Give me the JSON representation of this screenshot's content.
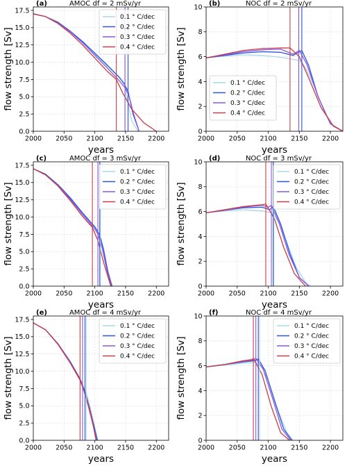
{
  "colors": [
    "#a6d8ec",
    "#2f55d4",
    "#8a56e2",
    "#c73c46"
  ],
  "series_names": [
    "0.1 ° C/dec",
    "0.2 ° C/dec",
    "0.3 ° C/dec",
    "0.4 ° C/dec"
  ],
  "chart_data": [
    {
      "letter": "(a)",
      "title": "AMOC df = 2 mSv/yr",
      "type": "line",
      "xlabel": "years",
      "ylabel": "flow strength [Sv]",
      "xlim": [
        2000,
        2220
      ],
      "ylim": [
        0,
        18
      ],
      "xticks": [
        2000,
        2050,
        2100,
        2150,
        2200
      ],
      "yticks": [
        0.0,
        2.5,
        5.0,
        7.5,
        10.0,
        12.5,
        15.0,
        17.5
      ],
      "ytick_labels": [
        "0.0",
        "2.5",
        "5.0",
        "7.5",
        "10.0",
        "12.5",
        "15.0",
        "17.5"
      ],
      "grid": true,
      "legend": "top-right",
      "vlines": [
        154,
        154,
        149,
        135
      ],
      "series": [
        {
          "name": "0.1 ° C/dec",
          "x": [
            2000,
            2020,
            2040,
            2060,
            2080,
            2100,
            2120,
            2140,
            2148,
            2154,
            2160,
            2170
          ],
          "y": [
            17.0,
            16.6,
            15.7,
            14.4,
            12.9,
            11.2,
            9.5,
            7.7,
            7.0,
            4.0,
            1.5,
            0.0
          ]
        },
        {
          "name": "0.2 ° C/dec",
          "x": [
            2000,
            2020,
            2040,
            2060,
            2080,
            2100,
            2120,
            2140,
            2148,
            2154,
            2162,
            2172
          ],
          "y": [
            17.0,
            16.6,
            15.8,
            14.5,
            13.0,
            11.3,
            9.6,
            7.8,
            6.8,
            5.8,
            2.5,
            0.0
          ]
        },
        {
          "name": "0.3 ° C/dec",
          "x": [
            2000,
            2020,
            2040,
            2060,
            2080,
            2100,
            2120,
            2140,
            2149,
            2155,
            2163,
            2172
          ],
          "y": [
            17.0,
            16.6,
            15.7,
            14.4,
            12.8,
            11.0,
            9.2,
            7.3,
            6.3,
            5.3,
            2.5,
            0.0
          ]
        },
        {
          "name": "0.4 ° C/dec",
          "x": [
            2000,
            2020,
            2040,
            2060,
            2080,
            2100,
            2120,
            2135,
            2145,
            2160,
            2180,
            2200
          ],
          "y": [
            17.0,
            16.6,
            15.6,
            14.2,
            12.5,
            10.6,
            8.7,
            7.5,
            5.6,
            3.2,
            1.2,
            0.0
          ]
        }
      ]
    },
    {
      "letter": "(b)",
      "title": "NOC df = 2 mSv/yr",
      "type": "line",
      "xlabel": "years",
      "ylabel": "flow strength [Sv]",
      "xlim": [
        2000,
        2220
      ],
      "ylim": [
        0,
        10
      ],
      "xticks": [
        2000,
        2050,
        2100,
        2150,
        2200
      ],
      "yticks": [
        0,
        2,
        4,
        6,
        8,
        10
      ],
      "ytick_labels": [
        "0",
        "2",
        "4",
        "6",
        "8",
        "10"
      ],
      "grid": true,
      "legend": "lower-left",
      "vlines": [
        154,
        154,
        149,
        135
      ],
      "series": [
        {
          "name": "0.1 ° C/dec",
          "x": [
            2000,
            2030,
            2060,
            2090,
            2120,
            2150,
            2160,
            2175,
            2190,
            2205,
            2220
          ],
          "y": [
            5.9,
            6.05,
            6.15,
            6.1,
            5.95,
            5.7,
            5.1,
            3.5,
            1.6,
            0.4,
            0.0
          ]
        },
        {
          "name": "0.2 ° C/dec",
          "x": [
            2000,
            2030,
            2060,
            2090,
            2120,
            2140,
            2154,
            2165,
            2180,
            2200,
            2220
          ],
          "y": [
            5.9,
            6.1,
            6.3,
            6.4,
            6.35,
            6.1,
            6.5,
            5.3,
            2.8,
            0.6,
            0.0
          ]
        },
        {
          "name": "0.3 ° C/dec",
          "x": [
            2000,
            2030,
            2060,
            2090,
            2120,
            2140,
            2150,
            2162,
            2180,
            2200,
            2220
          ],
          "y": [
            5.9,
            6.15,
            6.4,
            6.55,
            6.6,
            6.2,
            6.5,
            5.4,
            2.8,
            0.6,
            0.0
          ]
        },
        {
          "name": "0.4 ° C/dec",
          "x": [
            2000,
            2030,
            2060,
            2090,
            2120,
            2135,
            2150,
            2165,
            2185,
            2205,
            2220
          ],
          "y": [
            5.9,
            6.2,
            6.5,
            6.65,
            6.7,
            6.7,
            6.0,
            4.3,
            1.9,
            0.4,
            0.0
          ]
        }
      ]
    },
    {
      "letter": "(c)",
      "title": "AMOC df = 3 mSv/yr",
      "type": "line",
      "xlabel": "years",
      "ylabel": "flow strength [Sv]",
      "xlim": [
        2000,
        2220
      ],
      "ylim": [
        0,
        18
      ],
      "xticks": [
        2000,
        2050,
        2100,
        2150,
        2200
      ],
      "yticks": [
        0.0,
        2.5,
        5.0,
        7.5,
        10.0,
        12.5,
        15.0,
        17.5
      ],
      "ytick_labels": [
        "0.0",
        "2.5",
        "5.0",
        "7.5",
        "10.0",
        "12.5",
        "15.0",
        "17.5"
      ],
      "grid": true,
      "legend": "top-right",
      "vlines": [
        109,
        108,
        105,
        96
      ],
      "series": [
        {
          "name": "0.1 ° C/dec",
          "x": [
            2000,
            2020,
            2040,
            2060,
            2080,
            2100,
            2106,
            2112,
            2120,
            2128
          ],
          "y": [
            17.0,
            16.2,
            14.7,
            12.8,
            10.6,
            8.5,
            7.7,
            5.6,
            2.2,
            0.0
          ]
        },
        {
          "name": "0.2 ° C/dec",
          "x": [
            2000,
            2020,
            2040,
            2060,
            2080,
            2100,
            2108,
            2114,
            2121,
            2128
          ],
          "y": [
            17.0,
            16.2,
            14.7,
            12.8,
            10.6,
            8.6,
            7.4,
            5.4,
            2.2,
            0.0
          ]
        },
        {
          "name": "0.3 ° C/dec",
          "x": [
            2000,
            2020,
            2040,
            2060,
            2080,
            2100,
            2105,
            2112,
            2120,
            2127
          ],
          "y": [
            17.0,
            16.1,
            14.6,
            12.6,
            10.4,
            8.3,
            7.5,
            5.5,
            2.2,
            0.0
          ]
        },
        {
          "name": "0.4 ° C/dec",
          "x": [
            2000,
            2020,
            2040,
            2060,
            2080,
            2096,
            2105,
            2115,
            2126
          ],
          "y": [
            17.0,
            16.1,
            14.5,
            12.4,
            10.1,
            8.5,
            6.6,
            3.2,
            0.0
          ]
        }
      ]
    },
    {
      "letter": "(d)",
      "title": "NOC df = 3 mSv/yr",
      "type": "line",
      "xlabel": "years",
      "ylabel": "flow strength [Sv]",
      "xlim": [
        2000,
        2220
      ],
      "ylim": [
        0,
        10
      ],
      "xticks": [
        2000,
        2050,
        2100,
        2150,
        2200
      ],
      "yticks": [
        0,
        2,
        4,
        6,
        8,
        10
      ],
      "ytick_labels": [
        "0",
        "2",
        "4",
        "6",
        "8",
        "10"
      ],
      "grid": true,
      "legend": "top-right",
      "vlines": [
        109,
        108,
        105,
        96
      ],
      "series": [
        {
          "name": "0.1 ° C/dec",
          "x": [
            2000,
            2030,
            2060,
            2090,
            2105,
            2115,
            2130,
            2145,
            2160,
            2168
          ],
          "y": [
            5.9,
            6.05,
            6.15,
            6.05,
            5.9,
            5.3,
            3.5,
            1.5,
            0.3,
            0.0
          ]
        },
        {
          "name": "0.2 ° C/dec",
          "x": [
            2000,
            2030,
            2060,
            2090,
            2102,
            2108,
            2120,
            2135,
            2150,
            2165
          ],
          "y": [
            5.9,
            6.1,
            6.3,
            6.35,
            6.15,
            6.4,
            5.0,
            2.6,
            0.7,
            0.0
          ]
        },
        {
          "name": "0.3 ° C/dec",
          "x": [
            2000,
            2030,
            2060,
            2090,
            2100,
            2105,
            2118,
            2133,
            2150,
            2165
          ],
          "y": [
            5.9,
            6.1,
            6.35,
            6.5,
            6.35,
            6.5,
            5.0,
            2.6,
            0.7,
            0.0
          ]
        },
        {
          "name": "0.4 ° C/dec",
          "x": [
            2000,
            2030,
            2060,
            2090,
            2096,
            2110,
            2125,
            2142,
            2160
          ],
          "y": [
            5.9,
            6.15,
            6.4,
            6.55,
            6.6,
            5.4,
            3.1,
            1.0,
            0.0
          ]
        }
      ]
    },
    {
      "letter": "(e)",
      "title": "AMOC df = 4 mSv/yr",
      "type": "line",
      "xlabel": "years",
      "ylabel": "flow strength [Sv]",
      "xlim": [
        2000,
        2220
      ],
      "ylim": [
        0,
        18
      ],
      "xticks": [
        2000,
        2050,
        2100,
        2150,
        2200
      ],
      "yticks": [
        0.0,
        2.5,
        5.0,
        7.5,
        10.0,
        12.5,
        15.0,
        17.5
      ],
      "ytick_labels": [
        "0.0",
        "2.5",
        "5.0",
        "7.5",
        "10.0",
        "12.5",
        "15.0",
        "17.5"
      ],
      "grid": true,
      "legend": "top-right",
      "vlines": [
        86,
        84,
        80,
        76
      ],
      "series": [
        {
          "name": "0.1 ° C/dec",
          "x": [
            2000,
            2020,
            2040,
            2060,
            2076,
            2086,
            2093,
            2099,
            2105
          ],
          "y": [
            17.0,
            16.0,
            14.0,
            11.4,
            8.9,
            6.9,
            4.6,
            2.2,
            0.0
          ]
        },
        {
          "name": "0.2 ° C/dec",
          "x": [
            2000,
            2020,
            2040,
            2060,
            2076,
            2084,
            2091,
            2098,
            2104
          ],
          "y": [
            17.0,
            16.0,
            14.0,
            11.4,
            8.9,
            7.0,
            4.8,
            2.3,
            0.0
          ]
        },
        {
          "name": "0.3 ° C/dec",
          "x": [
            2000,
            2020,
            2040,
            2060,
            2076,
            2080,
            2088,
            2096,
            2103
          ],
          "y": [
            17.0,
            16.0,
            14.0,
            11.3,
            8.8,
            7.9,
            5.4,
            2.6,
            0.0
          ]
        },
        {
          "name": "0.4 ° C/dec",
          "x": [
            2000,
            2020,
            2040,
            2060,
            2076,
            2086,
            2095,
            2102
          ],
          "y": [
            17.0,
            16.0,
            13.9,
            11.2,
            8.7,
            6.3,
            3.3,
            0.0
          ]
        }
      ]
    },
    {
      "letter": "(f)",
      "title": "NOC df = 4 mSv/yr",
      "type": "line",
      "xlabel": "years",
      "ylabel": "flow strength [Sv]",
      "xlim": [
        2000,
        2220
      ],
      "ylim": [
        0,
        10
      ],
      "xticks": [
        2000,
        2050,
        2100,
        2150,
        2200
      ],
      "yticks": [
        0,
        2,
        4,
        6,
        8,
        10
      ],
      "ytick_labels": [
        "0",
        "2",
        "4",
        "6",
        "8",
        "10"
      ],
      "grid": true,
      "legend": "top-right",
      "vlines": [
        86,
        84,
        80,
        76
      ],
      "series": [
        {
          "name": "0.1 ° C/dec",
          "x": [
            2000,
            2030,
            2060,
            2080,
            2090,
            2100,
            2115,
            2130,
            2140
          ],
          "y": [
            5.9,
            6.05,
            6.2,
            6.25,
            5.9,
            4.8,
            2.5,
            0.6,
            0.0
          ]
        },
        {
          "name": "0.2 ° C/dec",
          "x": [
            2000,
            2030,
            2060,
            2078,
            2084,
            2095,
            2110,
            2125,
            2138
          ],
          "y": [
            5.9,
            6.1,
            6.3,
            6.4,
            6.55,
            5.6,
            3.2,
            0.9,
            0.0
          ]
        },
        {
          "name": "0.3 ° C/dec",
          "x": [
            2000,
            2030,
            2060,
            2076,
            2080,
            2092,
            2108,
            2122,
            2136
          ],
          "y": [
            5.9,
            6.1,
            6.35,
            6.45,
            6.6,
            5.7,
            3.2,
            0.9,
            0.0
          ]
        },
        {
          "name": "0.4 ° C/dec",
          "x": [
            2000,
            2030,
            2060,
            2074,
            2076,
            2090,
            2105,
            2120,
            2134
          ],
          "y": [
            5.9,
            6.1,
            6.4,
            6.5,
            6.6,
            5.3,
            2.7,
            0.6,
            0.0
          ]
        }
      ]
    }
  ]
}
